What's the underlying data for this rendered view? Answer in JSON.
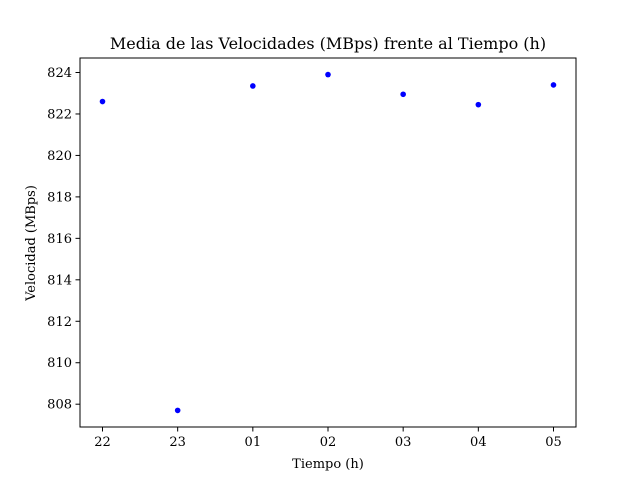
{
  "chart_data": {
    "type": "scatter",
    "title": "Media de las Velocidades (MBps) frente al Tiempo (h)",
    "xlabel": "Tiempo (h)",
    "ylabel": "Velocidad (MBps)",
    "categories": [
      "22",
      "23",
      "01",
      "02",
      "03",
      "04",
      "05"
    ],
    "values": [
      822.6,
      807.7,
      823.35,
      823.9,
      822.95,
      822.45,
      823.4
    ],
    "ylim": [
      806.9,
      824.7
    ],
    "yticks": [
      808,
      810,
      812,
      814,
      816,
      818,
      820,
      822,
      824
    ],
    "grid": false,
    "marker_color": "#0000ff",
    "axis_color": "#000000",
    "background_color": "#ffffff"
  }
}
